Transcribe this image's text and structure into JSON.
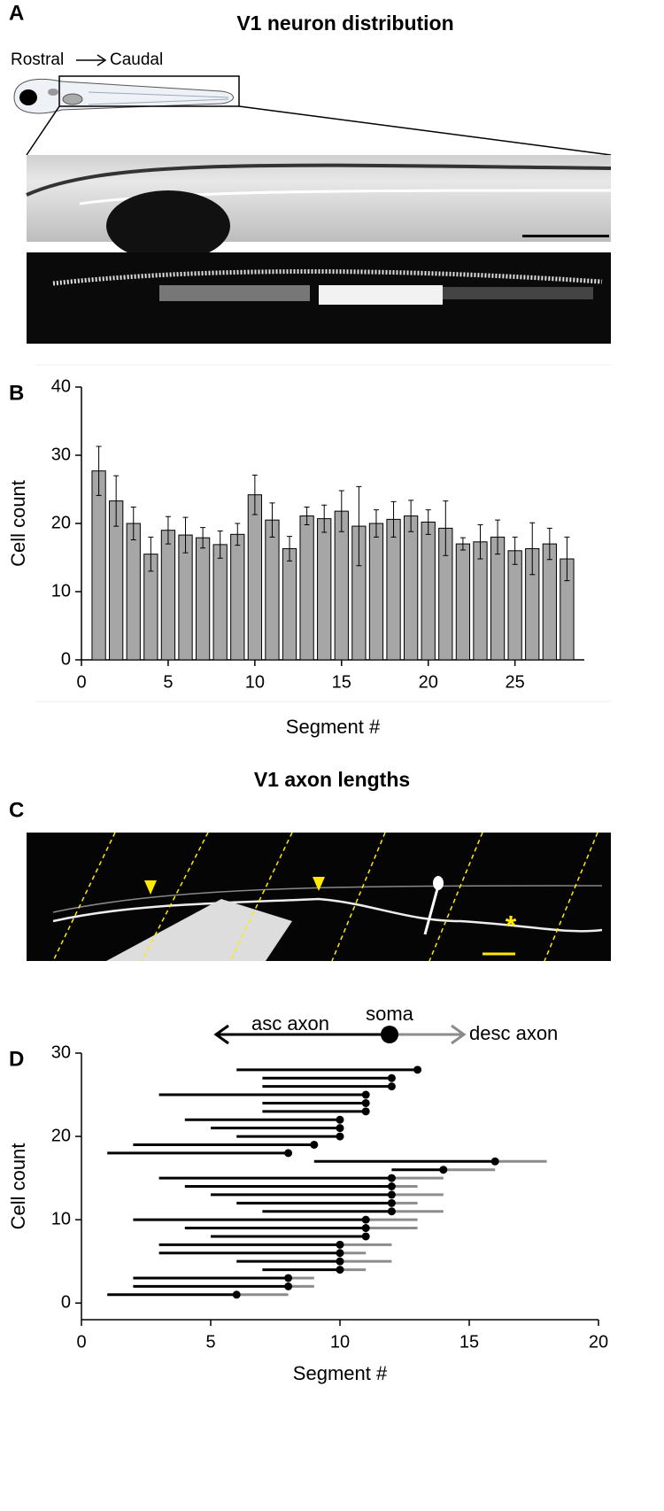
{
  "panel_a": {
    "label": "A",
    "title": "V1 neuron distribution",
    "rostral": "Rostral",
    "caudal": "Caudal"
  },
  "panel_c": {
    "label": "C",
    "title": "V1 axon lengths",
    "annotation": "*"
  },
  "chart_data": [
    {
      "type": "bar",
      "panel_label": "B",
      "x_label": "Segment #",
      "y_label": "Cell count",
      "x": [
        1,
        2,
        3,
        4,
        5,
        6,
        7,
        8,
        9,
        10,
        11,
        12,
        13,
        14,
        15,
        16,
        17,
        18,
        19,
        20,
        21,
        22,
        23,
        24,
        25,
        26,
        27,
        28
      ],
      "values": [
        27.7,
        23.3,
        20,
        15.5,
        19,
        18.3,
        17.9,
        16.9,
        18.4,
        24.2,
        20.5,
        16.3,
        21.1,
        20.7,
        21.8,
        19.6,
        20,
        20.6,
        21.1,
        20.2,
        19.3,
        17,
        17.3,
        18,
        16,
        16.3,
        17,
        14.8
      ],
      "errors": [
        3.6,
        3.7,
        2.4,
        2.5,
        2,
        2.6,
        1.5,
        2,
        1.6,
        2.9,
        2.5,
        1.8,
        1.3,
        2,
        3,
        5.8,
        2,
        2.6,
        2.3,
        1.8,
        4,
        0.9,
        2.5,
        2.5,
        2,
        3.8,
        2.3,
        3.2
      ],
      "color": "#a6a6a6",
      "xlim": [
        0,
        29
      ],
      "ylim": [
        0,
        40
      ],
      "xticks": [
        0,
        5,
        10,
        15,
        20,
        25
      ],
      "yticks": [
        0,
        10,
        20,
        30,
        40
      ]
    },
    {
      "type": "range",
      "panel_label": "D",
      "x_label": "Segment #",
      "y_label": "Cell count",
      "legend": {
        "asc": "asc axon",
        "soma": "soma",
        "desc": "desc axon"
      },
      "asc_color": "#000000",
      "desc_color": "#8c8c8c",
      "y": [
        28,
        27,
        26,
        25,
        24,
        23,
        22,
        21,
        20,
        19,
        18,
        17,
        16,
        15,
        14,
        13,
        12,
        11,
        10,
        9,
        8,
        7,
        6,
        5,
        4,
        3,
        2,
        1
      ],
      "asc_end": [
        6,
        7,
        7,
        3,
        7,
        7,
        4,
        5,
        6,
        2,
        1,
        9,
        12,
        3,
        4,
        5,
        6,
        7,
        2,
        4,
        5,
        3,
        3,
        6,
        7,
        2,
        2,
        1
      ],
      "soma": [
        13,
        12,
        12,
        11,
        11,
        11,
        10,
        10,
        10,
        9,
        8,
        16,
        14,
        12,
        12,
        12,
        12,
        12,
        11,
        11,
        11,
        10,
        10,
        10,
        10,
        8,
        8,
        6
      ],
      "desc_end": [
        null,
        null,
        null,
        null,
        null,
        null,
        null,
        null,
        null,
        null,
        null,
        18,
        16,
        14,
        13,
        14,
        13,
        14,
        13,
        13,
        11,
        12,
        11,
        12,
        11,
        9,
        9,
        8
      ],
      "xlim": [
        0,
        20
      ],
      "ylim": [
        -2,
        30
      ],
      "xticks": [
        0,
        5,
        10,
        15,
        20
      ],
      "yticks": [
        0,
        10,
        20,
        30
      ]
    }
  ]
}
